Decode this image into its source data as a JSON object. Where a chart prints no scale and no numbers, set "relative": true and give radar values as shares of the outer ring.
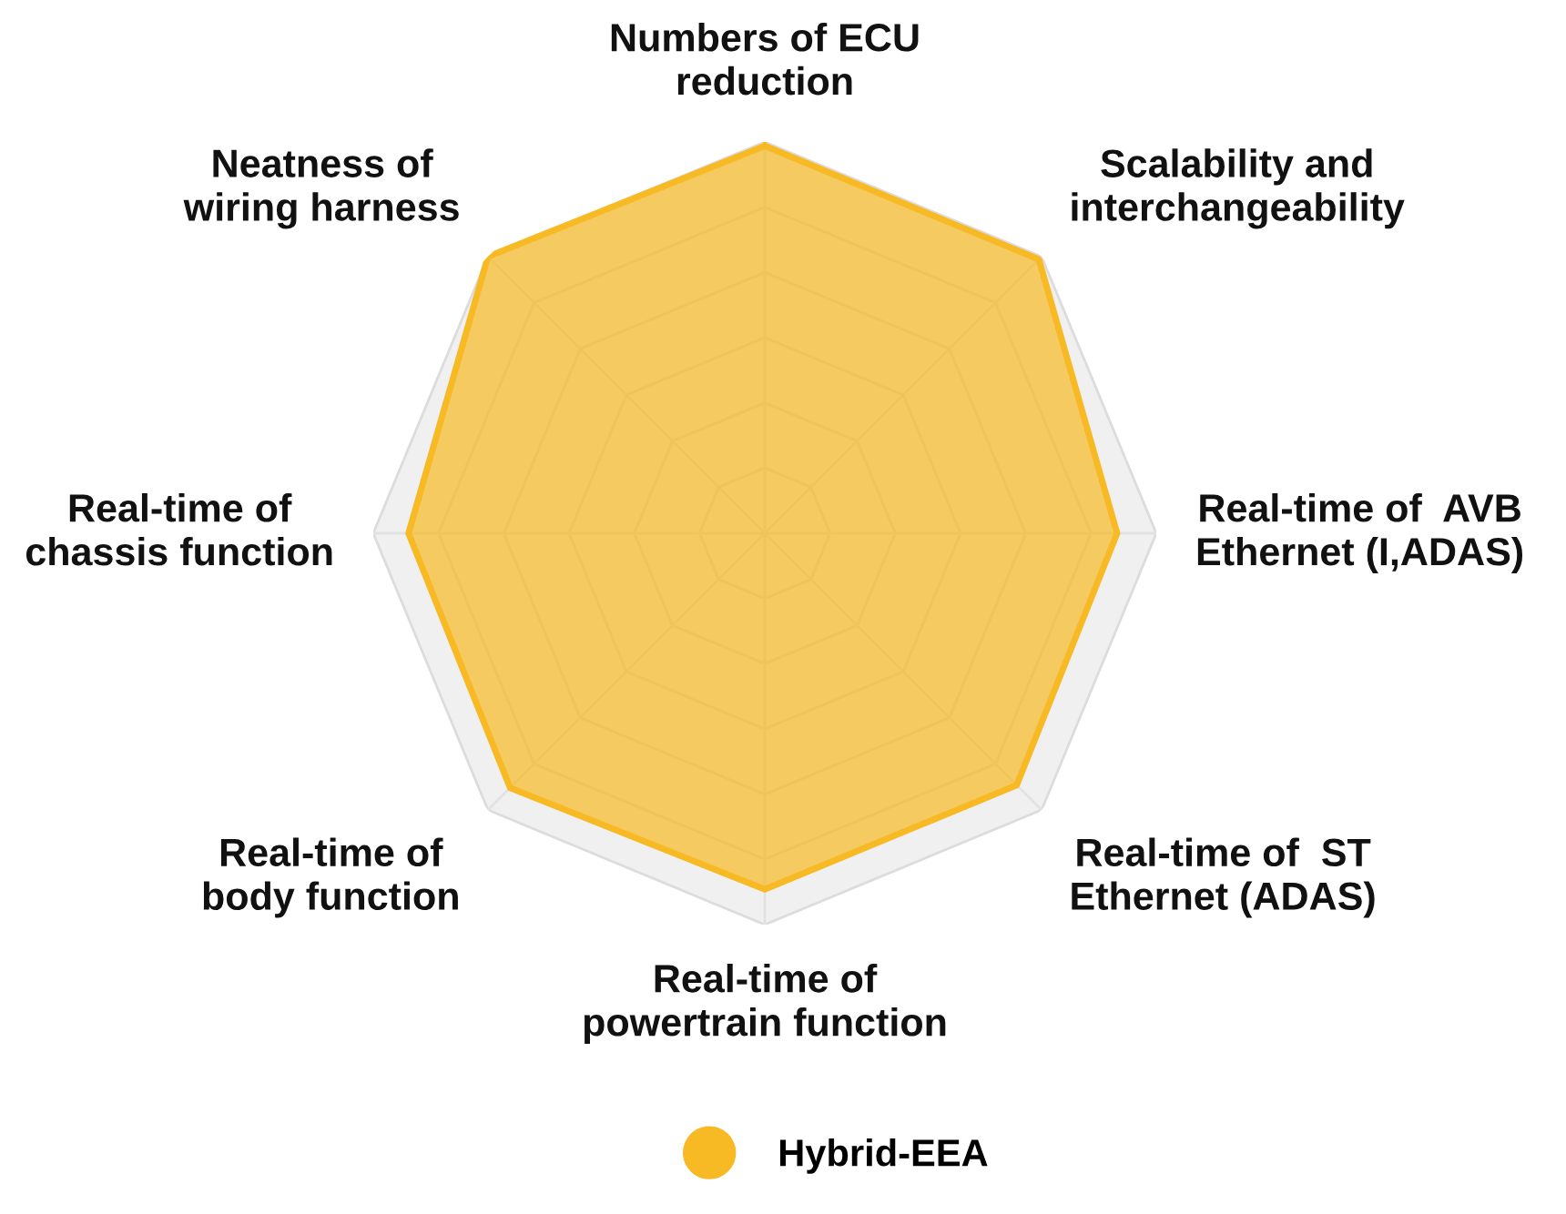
{
  "chart_data": {
    "type": "radar",
    "relative": true,
    "categories": [
      "Numbers of ECU\nreduction",
      "Scalability and\ninterchangeability",
      "Real-time of  AVB\nEthernet (I,ADAS)",
      "Real-time of  ST\nEthernet (ADAS)",
      "Real-time of\npowertrain function",
      "Real-time of\nbody function",
      "Real-time of\nchassis function",
      "Neatness of\nwiring harness"
    ],
    "series": [
      {
        "name": "Hybrid-EEA",
        "color": "#f7b924",
        "values": [
          0.99,
          0.99,
          0.9,
          0.91,
          0.91,
          0.92,
          0.91,
          1.0
        ]
      }
    ],
    "grid": true,
    "legend": "bottom"
  }
}
